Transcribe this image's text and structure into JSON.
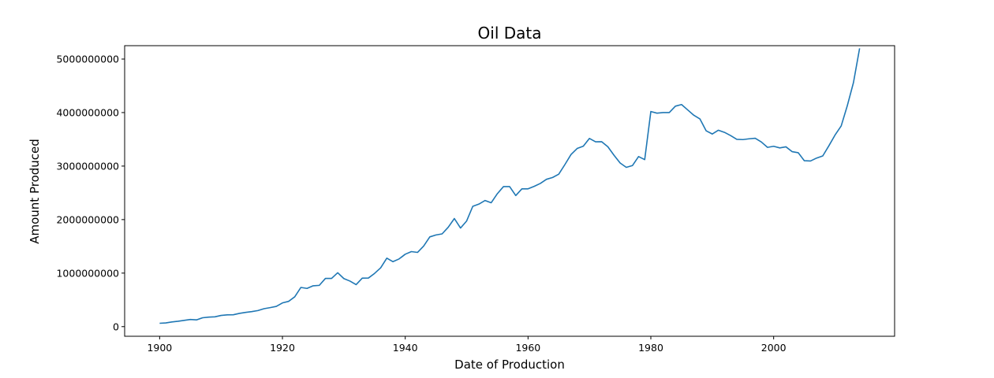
{
  "chart_data": {
    "type": "line",
    "title": "Oil Data",
    "xlabel": "Date of Production",
    "ylabel": "Amount Produced",
    "xlim": [
      1894.3,
      2019.7
    ],
    "ylim": [
      -180000000,
      5250000000
    ],
    "xticks": [
      1900,
      1920,
      1940,
      1960,
      1980,
      2000
    ],
    "xtick_labels": [
      "1900",
      "1920",
      "1940",
      "1960",
      "1980",
      "2000"
    ],
    "yticks": [
      0,
      1000000000,
      2000000000,
      3000000000,
      4000000000,
      5000000000
    ],
    "ytick_labels": [
      "0",
      "1000000000",
      "2000000000",
      "3000000000",
      "4000000000",
      "5000000000"
    ],
    "grid": false,
    "line_color": "#1f77b4",
    "series": [
      {
        "x": [
          1900,
          1901,
          1902,
          1903,
          1904,
          1905,
          1906,
          1907,
          1908,
          1909,
          1910,
          1911,
          1912,
          1913,
          1914,
          1915,
          1916,
          1917,
          1918,
          1919,
          1920,
          1921,
          1922,
          1923,
          1924,
          1925,
          1926,
          1927,
          1928,
          1929,
          1930,
          1931,
          1932,
          1933,
          1934,
          1935,
          1936,
          1937,
          1938,
          1939,
          1940,
          1941,
          1942,
          1943,
          1944,
          1945,
          1946,
          1947,
          1948,
          1949,
          1950,
          1951,
          1952,
          1953,
          1954,
          1955,
          1956,
          1957,
          1958,
          1959,
          1960,
          1961,
          1962,
          1963,
          1964,
          1965,
          1966,
          1967,
          1968,
          1969,
          1970,
          1971,
          1972,
          1973,
          1974,
          1975,
          1976,
          1977,
          1978,
          1979,
          1980,
          1981,
          1982,
          1983,
          1984,
          1985,
          1986,
          1987,
          1988,
          1989,
          1990,
          1991,
          1992,
          1993,
          1994,
          1995,
          1996,
          1997,
          1998,
          1999,
          2000,
          2001,
          2002,
          2003,
          2004,
          2005,
          2006,
          2007,
          2008,
          2009,
          2010,
          2011,
          2012,
          2013,
          2014
        ],
        "values": [
          63000000,
          69000000,
          88000000,
          100000000,
          117000000,
          134000000,
          126000000,
          166000000,
          178000000,
          183000000,
          209000000,
          220000000,
          222000000,
          248000000,
          266000000,
          281000000,
          300000000,
          335000000,
          355000000,
          378000000,
          443000000,
          472000000,
          557000000,
          732000000,
          714000000,
          763000000,
          771000000,
          901000000,
          901000000,
          1007000000,
          898000000,
          851000000,
          785000000,
          906000000,
          908000000,
          994000000,
          1099000000,
          1279000000,
          1214000000,
          1265000000,
          1353000000,
          1402000000,
          1387000000,
          1506000000,
          1677000000,
          1713000000,
          1733000000,
          1857000000,
          2020000000,
          1842000000,
          1974000000,
          2248000000,
          2290000000,
          2357000000,
          2315000000,
          2484000000,
          2617000000,
          2617000000,
          2449000000,
          2575000000,
          2575000000,
          2622000000,
          2676000000,
          2753000000,
          2787000000,
          2848000000,
          3028000000,
          3216000000,
          3329000000,
          3372000000,
          3517000000,
          3454000000,
          3455000000,
          3361000000,
          3203000000,
          3057000000,
          2976000000,
          3009000000,
          3178000000,
          3121000000,
          4020000000,
          3989000000,
          4000000000,
          4000000000,
          4120000000,
          4150000000,
          4050000000,
          3950000000,
          3880000000,
          3660000000,
          3600000000,
          3670000000,
          3630000000,
          3570000000,
          3500000000,
          3495000000,
          3510000000,
          3520000000,
          3450000000,
          3350000000,
          3370000000,
          3340000000,
          3360000000,
          3270000000,
          3250000000,
          3100000000,
          3095000000,
          3150000000,
          3190000000,
          3380000000,
          3580000000,
          3750000000,
          4130000000,
          4560000000,
          5200000000
        ]
      }
    ]
  }
}
